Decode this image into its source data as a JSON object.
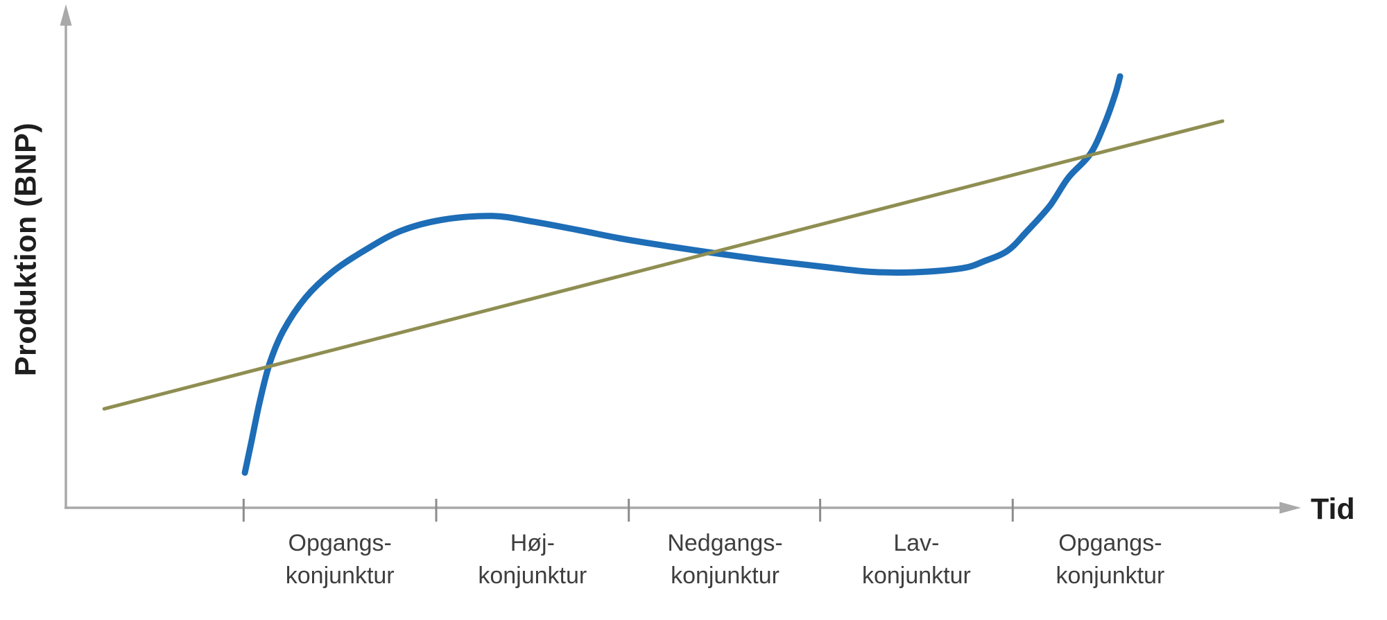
{
  "chart_data": {
    "type": "line",
    "xlabel": "Tid",
    "ylabel": "Produktion (BNP)",
    "background": "#ffffff",
    "axis_color": "#a9a9a9",
    "tick_color": "#8c8c8c",
    "label_color": "#3e3e3e",
    "axis_title_color": "#1e1e1e",
    "x_range": [
      0,
      100
    ],
    "y_range": [
      0,
      100
    ],
    "grid": false,
    "legend": false,
    "x_ticks_t": [
      14.4,
      30.0,
      45.6,
      61.1,
      76.7
    ],
    "phases": [
      {
        "line1": "Opgangs-",
        "line2": "konjunktur",
        "t_center": 22.2
      },
      {
        "line1": "Høj-",
        "line2": "konjunktur",
        "t_center": 37.8
      },
      {
        "line1": "Nedgangs-",
        "line2": "konjunktur",
        "t_center": 53.4
      },
      {
        "line1": "Lav-",
        "line2": "konjunktur",
        "t_center": 68.9
      },
      {
        "line1": "Opgangs-",
        "line2": "konjunktur",
        "t_center": 84.6
      }
    ],
    "series": [
      {
        "name": "business-cycle-curve",
        "color": "#1d6db7",
        "stroke_width": 9,
        "smooth": true,
        "points": [
          [
            14.5,
            7.0
          ],
          [
            15.0,
            12.8
          ],
          [
            15.7,
            21.1
          ],
          [
            16.5,
            28.7
          ],
          [
            17.6,
            35.2
          ],
          [
            19.4,
            41.8
          ],
          [
            21.6,
            47.0
          ],
          [
            24.3,
            51.4
          ],
          [
            27.2,
            55.2
          ],
          [
            30.6,
            57.4
          ],
          [
            34.6,
            58.1
          ],
          [
            37.8,
            57.0
          ],
          [
            41.5,
            55.3
          ],
          [
            45.2,
            53.5
          ],
          [
            49.0,
            52.0
          ],
          [
            52.0,
            50.9
          ],
          [
            56.5,
            49.4
          ],
          [
            61.3,
            48.0
          ],
          [
            65.1,
            47.0
          ],
          [
            68.8,
            46.9
          ],
          [
            72.6,
            47.7
          ],
          [
            74.4,
            49.1
          ],
          [
            76.3,
            51.2
          ],
          [
            77.8,
            54.9
          ],
          [
            79.7,
            60.1
          ],
          [
            81.2,
            65.7
          ],
          [
            83.0,
            70.5
          ],
          [
            84.2,
            76.8
          ],
          [
            85.0,
            82.3
          ],
          [
            85.4,
            85.9
          ]
        ]
      },
      {
        "name": "long-term-trend-line",
        "color": "#8f8e52",
        "stroke_width": 5,
        "smooth": false,
        "points": [
          [
            3.1,
            19.7
          ],
          [
            93.7,
            77.0
          ]
        ]
      }
    ]
  }
}
